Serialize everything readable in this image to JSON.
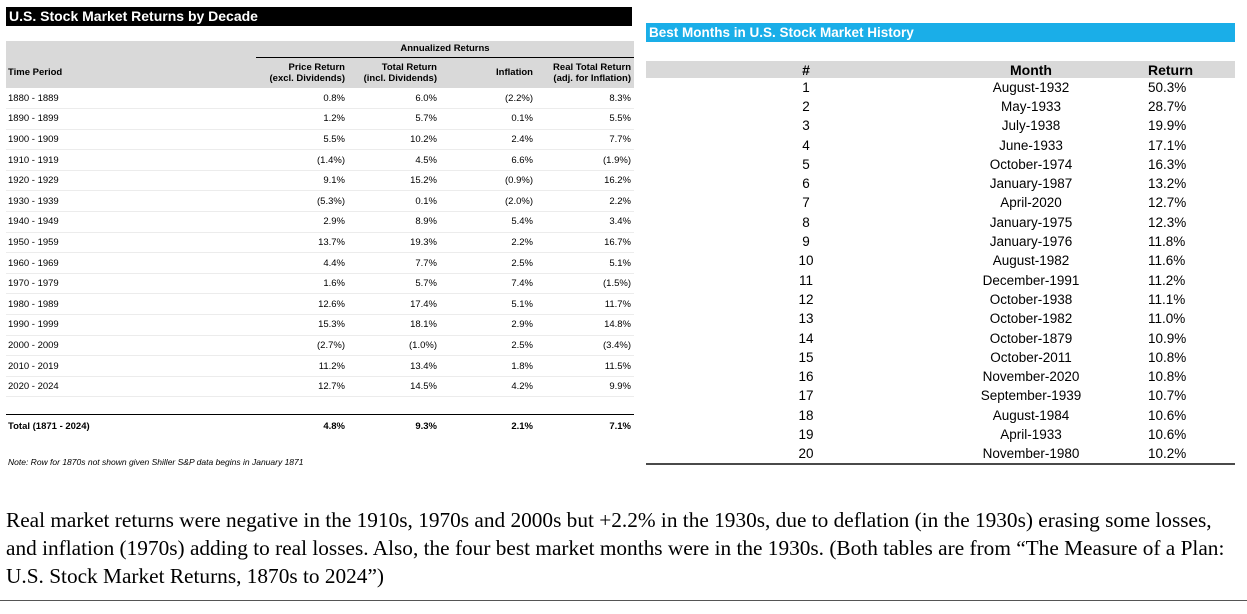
{
  "decade_table": {
    "title": "U.S. Stock Market Returns by Decade",
    "group_header": "Annualized Returns",
    "columns": {
      "period": "Time Period",
      "price_return_1": "Price Return",
      "price_return_2": "(excl. Dividends)",
      "total_return_1": "Total Return",
      "total_return_2": "(incl. Dividends)",
      "inflation": "Inflation",
      "real_return_1": "Real Total Return",
      "real_return_2": "(adj. for Inflation)"
    },
    "rows": [
      {
        "period": "1880 - 1889",
        "price": "0.8%",
        "total": "6.0%",
        "inflation": "(2.2%)",
        "real": "8.3%"
      },
      {
        "period": "1890 - 1899",
        "price": "1.2%",
        "total": "5.7%",
        "inflation": "0.1%",
        "real": "5.5%"
      },
      {
        "period": "1900 - 1909",
        "price": "5.5%",
        "total": "10.2%",
        "inflation": "2.4%",
        "real": "7.7%"
      },
      {
        "period": "1910 - 1919",
        "price": "(1.4%)",
        "total": "4.5%",
        "inflation": "6.6%",
        "real": "(1.9%)"
      },
      {
        "period": "1920 - 1929",
        "price": "9.1%",
        "total": "15.2%",
        "inflation": "(0.9%)",
        "real": "16.2%"
      },
      {
        "period": "1930 - 1939",
        "price": "(5.3%)",
        "total": "0.1%",
        "inflation": "(2.0%)",
        "real": "2.2%"
      },
      {
        "period": "1940 - 1949",
        "price": "2.9%",
        "total": "8.9%",
        "inflation": "5.4%",
        "real": "3.4%"
      },
      {
        "period": "1950 - 1959",
        "price": "13.7%",
        "total": "19.3%",
        "inflation": "2.2%",
        "real": "16.7%"
      },
      {
        "period": "1960 - 1969",
        "price": "4.4%",
        "total": "7.7%",
        "inflation": "2.5%",
        "real": "5.1%"
      },
      {
        "period": "1970 - 1979",
        "price": "1.6%",
        "total": "5.7%",
        "inflation": "7.4%",
        "real": "(1.5%)"
      },
      {
        "period": "1980 - 1989",
        "price": "12.6%",
        "total": "17.4%",
        "inflation": "5.1%",
        "real": "11.7%"
      },
      {
        "period": "1990 - 1999",
        "price": "15.3%",
        "total": "18.1%",
        "inflation": "2.9%",
        "real": "14.8%"
      },
      {
        "period": "2000 - 2009",
        "price": "(2.7%)",
        "total": "(1.0%)",
        "inflation": "2.5%",
        "real": "(3.4%)"
      },
      {
        "period": "2010 - 2019",
        "price": "11.2%",
        "total": "13.4%",
        "inflation": "1.8%",
        "real": "11.5%"
      },
      {
        "period": "2020 - 2024",
        "price": "12.7%",
        "total": "14.5%",
        "inflation": "4.2%",
        "real": "9.9%"
      }
    ],
    "total": {
      "period": "Total (1871 - 2024)",
      "price": "4.8%",
      "total": "9.3%",
      "inflation": "2.1%",
      "real": "7.1%"
    },
    "note": "Note: Row for 1870s not shown given Shiller S&P data begins in January 1871",
    "header_bg": "#d9d9d9",
    "title_bg": "#000000"
  },
  "best_months_table": {
    "title": "Best Months in U.S. Stock Market History",
    "title_bg": "#1aaee8",
    "columns": {
      "rank": "#",
      "month": "Month",
      "return": "Return"
    },
    "rows": [
      {
        "rank": "1",
        "month": "August-1932",
        "return": "50.3%"
      },
      {
        "rank": "2",
        "month": "May-1933",
        "return": "28.7%"
      },
      {
        "rank": "3",
        "month": "July-1938",
        "return": "19.9%"
      },
      {
        "rank": "4",
        "month": "June-1933",
        "return": "17.1%"
      },
      {
        "rank": "5",
        "month": "October-1974",
        "return": "16.3%"
      },
      {
        "rank": "6",
        "month": "January-1987",
        "return": "13.2%"
      },
      {
        "rank": "7",
        "month": "April-2020",
        "return": "12.7%"
      },
      {
        "rank": "8",
        "month": "January-1975",
        "return": "12.3%"
      },
      {
        "rank": "9",
        "month": "January-1976",
        "return": "11.8%"
      },
      {
        "rank": "10",
        "month": "August-1982",
        "return": "11.6%"
      },
      {
        "rank": "11",
        "month": "December-1991",
        "return": "11.2%"
      },
      {
        "rank": "12",
        "month": "October-1938",
        "return": "11.1%"
      },
      {
        "rank": "13",
        "month": "October-1982",
        "return": "11.0%"
      },
      {
        "rank": "14",
        "month": "October-1879",
        "return": "10.9%"
      },
      {
        "rank": "15",
        "month": "October-2011",
        "return": "10.8%"
      },
      {
        "rank": "16",
        "month": "November-2020",
        "return": "10.8%"
      },
      {
        "rank": "17",
        "month": "September-1939",
        "return": "10.7%"
      },
      {
        "rank": "18",
        "month": "August-1984",
        "return": "10.6%"
      },
      {
        "rank": "19",
        "month": "April-1933",
        "return": "10.6%"
      },
      {
        "rank": "20",
        "month": "November-1980",
        "return": "10.2%"
      }
    ]
  },
  "caption": "Real market returns were negative in the 1910s, 1970s and 2000s but +2.2% in the 1930s, due to deflation (in the 1930s) erasing some losses, and inflation (1970s) adding to real losses. Also, the four best market months were in the 1930s. (Both tables are from “The Measure of a Plan: U.S. Stock Market Returns, 1870s to 2024”)"
}
